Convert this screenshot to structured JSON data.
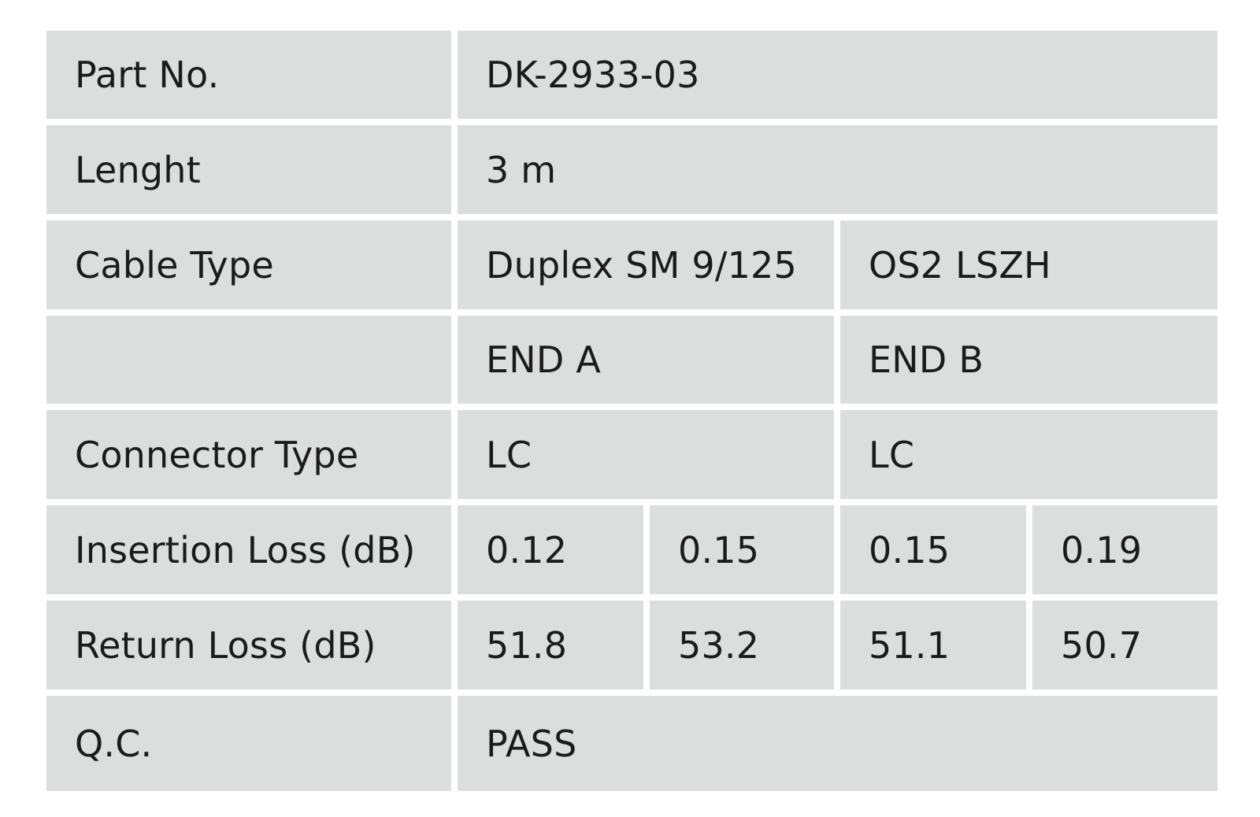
{
  "table": {
    "part_no": {
      "label": "Part No.",
      "value": "DK-2933-03"
    },
    "length": {
      "label": "Lenght",
      "value": "3 m"
    },
    "cable_type": {
      "label": "Cable Type",
      "value_a": "Duplex SM 9/125",
      "value_b": "OS2 LSZH"
    },
    "ends": {
      "label": "",
      "end_a": "END A",
      "end_b": "END B"
    },
    "connector_type": {
      "label": "Connector Type",
      "end_a": "LC",
      "end_b": "LC"
    },
    "insertion_loss": {
      "label": "Insertion Loss (dB)",
      "values": [
        "0.12",
        "0.15",
        "0.15",
        "0.19"
      ]
    },
    "return_loss": {
      "label": "Return Loss (dB)",
      "values": [
        "51.8",
        "53.2",
        "51.1",
        "50.7"
      ]
    },
    "qc": {
      "label": "Q.C.",
      "value": "PASS"
    }
  },
  "colors": {
    "cell_background": "#dcdedd",
    "grid_lines": "#ffffff",
    "text": "#1b1b1b"
  }
}
